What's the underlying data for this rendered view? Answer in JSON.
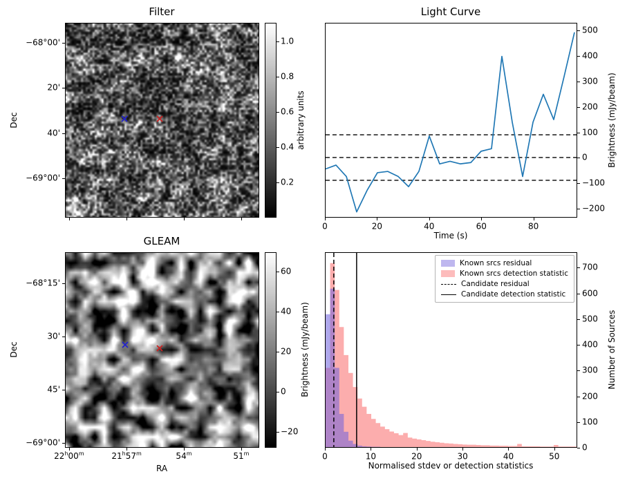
{
  "figure": {
    "background": "#ffffff"
  },
  "chart_data": [
    {
      "type": "heatmap",
      "name": "filter",
      "title": "Filter",
      "ylabel": "Dec",
      "cmap": "gray",
      "yticks": [
        {
          "label": "−68°00'",
          "f": 0.103
        },
        {
          "label": "20'",
          "f": 0.333
        },
        {
          "label": "40'",
          "f": 0.567
        },
        {
          "label": "−69°00'",
          "f": 0.798
        }
      ],
      "xticks_f": [
        0.021,
        0.317,
        0.612,
        0.907
      ],
      "colorbar": {
        "label": "arbitrary units",
        "ticks": [
          {
            "label": "1.0",
            "f": 0.096
          },
          {
            "label": "0.8",
            "f": 0.277
          },
          {
            "label": "0.6",
            "f": 0.457
          },
          {
            "label": "0.4",
            "f": 0.638
          },
          {
            "label": "0.2",
            "f": 0.819
          }
        ]
      },
      "markers": [
        {
          "name": "blue-cross",
          "color": "#2222cc",
          "fx": 0.306,
          "fy": 0.493
        },
        {
          "name": "red-cross",
          "color": "#cc2222",
          "fx": 0.487,
          "fy": 0.493
        }
      ]
    },
    {
      "type": "line",
      "name": "light-curve",
      "title": "Light Curve",
      "xlabel": "Time (s)",
      "ylabel": "Brightness (mJy/beam)",
      "line_color": "#1f77b4",
      "xlim": [
        0,
        96.8
      ],
      "ylim": [
        -235,
        530
      ],
      "xticks": [
        0,
        20,
        40,
        60,
        80
      ],
      "yticks": [
        500,
        400,
        300,
        200,
        100,
        0,
        -100,
        -200
      ],
      "ytick_labels": [
        "500",
        "400",
        "300",
        "200",
        "100",
        "0",
        "−100",
        "−200"
      ],
      "dashed_hlines": [
        90,
        0,
        -90
      ],
      "x": [
        0,
        4,
        8,
        12,
        16,
        20,
        24,
        28,
        32,
        36,
        40,
        44,
        48,
        52,
        56,
        60,
        64,
        68,
        72,
        76,
        80,
        84,
        88,
        92,
        96
      ],
      "y": [
        -45,
        -30,
        -75,
        -215,
        -130,
        -60,
        -55,
        -75,
        -115,
        -55,
        85,
        -25,
        -15,
        -25,
        -20,
        25,
        35,
        400,
        140,
        -75,
        140,
        250,
        150,
        320,
        495
      ]
    },
    {
      "type": "heatmap",
      "name": "gleam",
      "title": "GLEAM",
      "xlabel": "RA",
      "ylabel": "Dec",
      "cmap": "gray",
      "yticks": [
        {
          "label": "−68°15'",
          "f": 0.159
        },
        {
          "label": "30'",
          "f": 0.431
        },
        {
          "label": "45'",
          "f": 0.703
        },
        {
          "label": "−69°00'",
          "f": 0.975
        }
      ],
      "xticks": [
        {
          "f": 0.021,
          "parts": [
            [
              "22",
              false
            ],
            [
              "h",
              true
            ],
            [
              "00",
              false
            ],
            [
              "m",
              true
            ]
          ]
        },
        {
          "f": 0.317,
          "parts": [
            [
              "21",
              false
            ],
            [
              "h",
              true
            ],
            [
              "57",
              false
            ],
            [
              "m",
              true
            ]
          ]
        },
        {
          "f": 0.612,
          "parts": [
            [
              "54",
              false
            ],
            [
              "m",
              true
            ]
          ]
        },
        {
          "f": 0.907,
          "parts": [
            [
              "51",
              false
            ],
            [
              "m",
              true
            ]
          ]
        }
      ],
      "colorbar": {
        "label": "Brightness (mJy/beam)",
        "ticks": [
          {
            "label": "60",
            "f": 0.099
          },
          {
            "label": "40",
            "f": 0.304
          },
          {
            "label": "20",
            "f": 0.509
          },
          {
            "label": "0",
            "f": 0.714
          },
          {
            "label": "−20",
            "f": 0.919
          }
        ]
      },
      "markers": [
        {
          "name": "blue-cross",
          "color": "#2222cc",
          "fx": 0.31,
          "fy": 0.474
        },
        {
          "name": "red-cross",
          "color": "#cc2222",
          "fx": 0.487,
          "fy": 0.491
        }
      ]
    },
    {
      "type": "histogram",
      "name": "detection-statistics",
      "xlabel": "Normalised stdev or detection statistics",
      "ylabel": "Number of Sources",
      "xlim": [
        0,
        55
      ],
      "ylim": [
        0,
        760
      ],
      "xticks": [
        0,
        10,
        20,
        30,
        40,
        50
      ],
      "yticks": [
        0,
        100,
        200,
        300,
        400,
        500,
        600,
        700
      ],
      "bin_width": 1,
      "series": [
        {
          "name": "Known srcs residual",
          "color": "rgba(110,96,220,0.55)",
          "counts": [
            520,
            620,
            310,
            130,
            60,
            25,
            12,
            6,
            3,
            2,
            1,
            1
          ]
        },
        {
          "name": "Known srcs detection statistic",
          "color": "rgba(250,106,106,0.55)",
          "counts": [
            310,
            720,
            615,
            470,
            360,
            290,
            235,
            190,
            158,
            130,
            110,
            94,
            80,
            70,
            61,
            54,
            47,
            55,
            37,
            33,
            30,
            27,
            24,
            21,
            19,
            17,
            15,
            14,
            12,
            11,
            10,
            9,
            9,
            8,
            7,
            7,
            6,
            6,
            5,
            5,
            4,
            4,
            12,
            3,
            3,
            3,
            3,
            2,
            2,
            2,
            8,
            2,
            2,
            2,
            2
          ]
        }
      ],
      "candidate_residual_x": 1.8,
      "candidate_detection_x": 6.8,
      "legend": [
        {
          "symbol": "patch",
          "color": "rgba(110,96,220,0.45)",
          "label": "Known srcs residual"
        },
        {
          "symbol": "patch",
          "color": "rgba(250,106,106,0.45)",
          "label": "Known srcs detection statistic"
        },
        {
          "symbol": "dashed-line",
          "label": "Candidate residual"
        },
        {
          "symbol": "solid-line",
          "label": "Candidate detection statistic"
        }
      ]
    }
  ]
}
